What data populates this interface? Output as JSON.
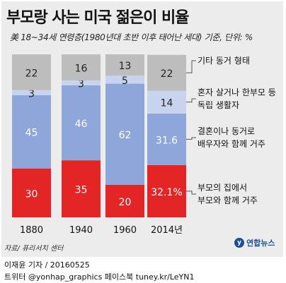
{
  "title": "부모랑 사는 미국 젊은이 비율",
  "subtitle": "美 18~34세 연령층(1980년대 초반 이후 태어난 세대) 기준, 단위: %",
  "source": "자료/ 퓨리서치 센터",
  "logo_text": "연합뉴스",
  "credit_line1": "이재윤 기자 / 20160525",
  "credit_line2": "트위터 @yonhap_graphics 페이스북 tuney.kr/LeYN1",
  "colors": {
    "other": "#bdbdbd",
    "alone": "#c8d3ee",
    "married": "#8ea6d9",
    "parents": "#e32525",
    "background": "#ececec"
  },
  "chart_data": {
    "type": "bar",
    "stacked": true,
    "categories": [
      "1880",
      "1940",
      "1960",
      "2014년"
    ],
    "series": [
      {
        "name": "부모의 집에서 부모와 함께 거주",
        "values": [
          30,
          35,
          20,
          32.1
        ],
        "labels": [
          "30",
          "35",
          "20",
          "32.1%"
        ],
        "color": "#e32525"
      },
      {
        "name": "결혼이나 동거로 배우자와 함께 거주",
        "values": [
          45,
          46,
          62,
          31.6
        ],
        "labels": [
          "45",
          "46",
          "62",
          "31.6"
        ],
        "color": "#8ea6d9"
      },
      {
        "name": "혼자 살거나 한부모 등 독립 생활자",
        "values": [
          3,
          3,
          5,
          14
        ],
        "labels": [
          "3",
          "3",
          "5",
          "14"
        ],
        "color": "#c8d3ee"
      },
      {
        "name": "기타 동거 형태",
        "values": [
          22,
          16,
          13,
          22
        ],
        "labels": [
          "22",
          "16",
          "13",
          "22"
        ],
        "color": "#bdbdbd"
      }
    ],
    "legend_lines": [
      [
        "기타 동거 형태"
      ],
      [
        "혼자 살거나 한부모 등",
        "독립 생활자"
      ],
      [
        "결혼이나 동거로",
        "배우자와 함께 거주"
      ],
      [
        "부모의 집에서",
        "부모와 함께 거주"
      ]
    ],
    "ylim": [
      0,
      100
    ],
    "legend_position": "right"
  }
}
